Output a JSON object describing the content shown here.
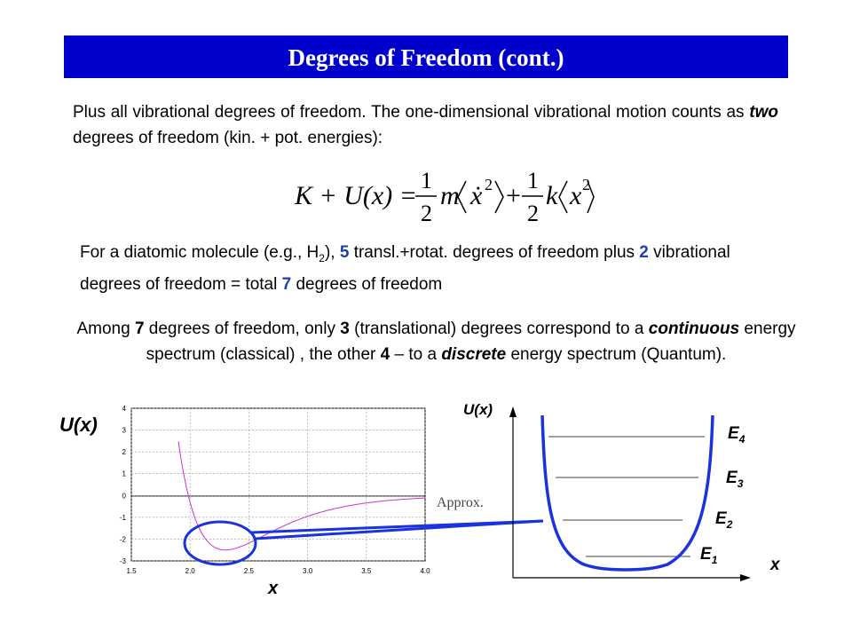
{
  "title": "Degrees of Freedom (cont.)",
  "para1": {
    "t1": "Plus all vibrational degrees of freedom.  The one-dimensional vibrational motion counts as ",
    "em": "two",
    "t2": " degrees of freedom (kin. + pot. energies):"
  },
  "equation": {
    "lhs": "K + U(x) =",
    "one": "1",
    "two": "2",
    "m": "m",
    "k": "k",
    "plus": "+",
    "xdot": "ẋ",
    "x": "x",
    "sq": "2"
  },
  "para2": {
    "t1": "For a diatomic molecule (e.g., H",
    "sub": "2",
    "t2": "), ",
    "n1": "5",
    "t3": " transl.+rotat. degrees of freedom plus ",
    "n2": "2",
    "t4": " vibrational degrees of freedom = total ",
    "n3": "7",
    "t5": " degrees of freedom"
  },
  "para3": {
    "t1": "Among ",
    "n1": "7",
    "t2": " degrees of freedom, only ",
    "n2": "3",
    "t3": " (translational) degrees correspond to a ",
    "w1": "continuous",
    "t4": " energy spectrum (classical) , the other ",
    "n3": "4",
    "t5": " – to a ",
    "w2": "discrete",
    "t6": " energy spectrum (Quantum)."
  },
  "left_plot": {
    "ylabel": "U(x)",
    "xlabel": "x",
    "yticks": [
      "4",
      "3",
      "2",
      "1",
      "0",
      "-1",
      "-2",
      "-3"
    ],
    "xticks": [
      "1.5",
      "2.0",
      "2.5",
      "3.0",
      "3.5",
      "4.0"
    ],
    "curve_color": "#cc33cc"
  },
  "approx_label": "Approx.",
  "right_diagram": {
    "ylabel": "U(x)",
    "xlabel": "x",
    "levels": [
      {
        "label": "E",
        "sub": "4"
      },
      {
        "label": "E",
        "sub": "3"
      },
      {
        "label": "E",
        "sub": "2"
      },
      {
        "label": "E",
        "sub": "1"
      }
    ],
    "well_color": "#1a33dd"
  }
}
